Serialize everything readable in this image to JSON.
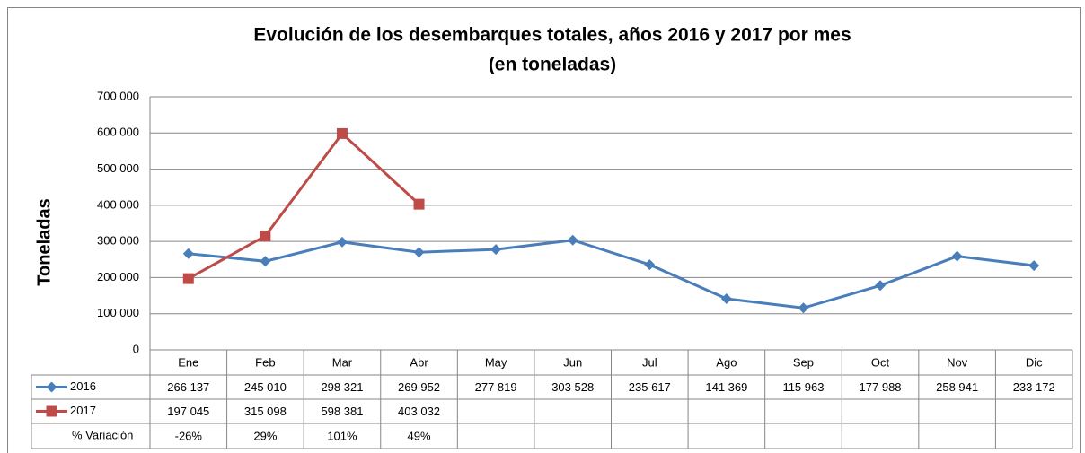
{
  "chart_data": {
    "type": "line",
    "title": "Evolución de los desembarques totales, años 2016 y 2017 por mes",
    "subtitle": "(en toneladas)",
    "ylabel": "Toneladas",
    "categories": [
      "Ene",
      "Feb",
      "Mar",
      "Abr",
      "May",
      "Jun",
      "Jul",
      "Ago",
      "Sep",
      "Oct",
      "Nov",
      "Dic"
    ],
    "series": [
      {
        "name": "2016",
        "color": "#4a7ebb",
        "marker": "diamond",
        "values": [
          266137,
          245010,
          298321,
          269952,
          277819,
          303528,
          235617,
          141369,
          115963,
          177988,
          258941,
          233172
        ],
        "value_labels": [
          "266 137",
          "245 010",
          "298 321",
          "269 952",
          "277 819",
          "303 528",
          "235 617",
          "141 369",
          "115 963",
          "177 988",
          "258 941",
          "233 172"
        ]
      },
      {
        "name": "2017",
        "color": "#be4b48",
        "marker": "square",
        "values": [
          197045,
          315098,
          598381,
          403032,
          null,
          null,
          null,
          null,
          null,
          null,
          null,
          null
        ],
        "value_labels": [
          "197 045",
          "315 098",
          "598 381",
          "403 032",
          null,
          null,
          null,
          null,
          null,
          null,
          null,
          null
        ]
      }
    ],
    "variation": {
      "name": "% Variación",
      "values": [
        -26,
        29,
        101,
        49
      ],
      "value_labels": [
        "-26%",
        "29%",
        "101%",
        "49%"
      ]
    },
    "ylim": [
      0,
      700000
    ],
    "yticks": [
      0,
      {
        "value": 100000,
        "label": "100 000"
      },
      {
        "value": 200000,
        "label": "200 000"
      },
      {
        "value": 300000,
        "label": "300 000"
      },
      {
        "value": 400000,
        "label": "400 000"
      },
      {
        "value": 500000,
        "label": "500 000"
      },
      {
        "value": 600000,
        "label": "600 000"
      },
      {
        "value": 700000,
        "label": "700 000"
      }
    ],
    "grid": true
  }
}
